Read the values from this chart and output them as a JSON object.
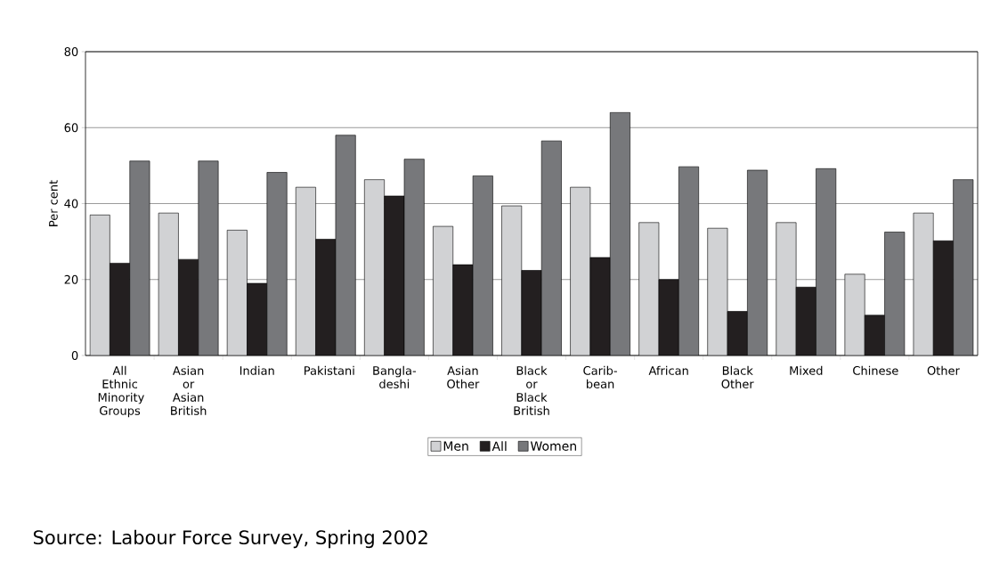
{
  "chart_data": {
    "type": "bar",
    "ylabel": "Per cent",
    "categories": [
      "All Ethnic Minority Groups",
      "Asian or Asian British",
      "Indian",
      "Pakistani",
      "Bangla-deshi",
      "Asian Other",
      "Black or Black British",
      "Carib-bean",
      "African",
      "Black Other",
      "Mixed",
      "Chinese",
      "Other"
    ],
    "series": [
      {
        "name": "Men",
        "color": "#d1d2d4",
        "values": [
          37,
          37.5,
          33,
          44.3,
          46.3,
          34,
          39.4,
          44.3,
          35,
          33.5,
          35,
          21.4,
          37.5
        ]
      },
      {
        "name": "All",
        "color": "#231f20",
        "values": [
          24.3,
          25.3,
          19,
          30.6,
          42,
          23.9,
          22.4,
          25.8,
          20,
          11.6,
          18,
          10.6,
          30.2
        ]
      },
      {
        "name": "Women",
        "color": "#77787b",
        "values": [
          51.2,
          51.2,
          48.2,
          58,
          51.7,
          47.3,
          56.5,
          64,
          49.7,
          48.8,
          49.2,
          32.5,
          46.3
        ]
      }
    ],
    "ylim": [
      0,
      80
    ],
    "yticks": [
      0,
      20,
      40,
      60,
      80
    ],
    "grid": "y",
    "legend": "bottom",
    "annotations": [
      "Source: Labour Force Survey, Spring 2002"
    ]
  }
}
